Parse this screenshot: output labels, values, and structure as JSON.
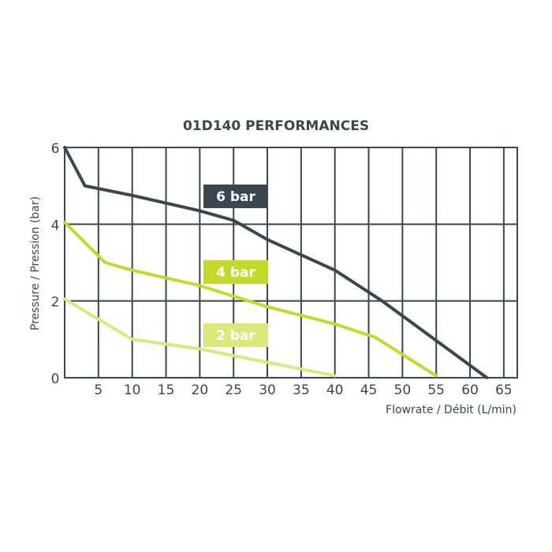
{
  "chart_data": {
    "type": "line",
    "title": "01D140 PERFORMANCES",
    "xlabel": "Flowrate / Débit (L/min)",
    "ylabel": "Pressure / Pression (bar)",
    "xlim": [
      0,
      67
    ],
    "ylim": [
      0,
      6
    ],
    "x_ticks": [
      5,
      10,
      15,
      20,
      25,
      30,
      35,
      40,
      45,
      50,
      55,
      60,
      65
    ],
    "y_ticks": [
      0,
      2,
      4,
      6
    ],
    "x_tick_labels": [
      "5",
      "10",
      "15",
      "20",
      "25",
      "30",
      "35",
      "40",
      "45",
      "50",
      "55",
      "60",
      "65"
    ],
    "y_tick_labels": [
      "0",
      "2",
      "4",
      "6"
    ],
    "grid": true,
    "series": [
      {
        "name": "6 bar",
        "color": "#3a4650",
        "points": [
          [
            0,
            6.0
          ],
          [
            3,
            5.0
          ],
          [
            10,
            4.75
          ],
          [
            20,
            4.35
          ],
          [
            25,
            4.1
          ],
          [
            26,
            4.0
          ],
          [
            30,
            3.6
          ],
          [
            40,
            2.8
          ],
          [
            47,
            2.0
          ],
          [
            62.5,
            0.0
          ]
        ]
      },
      {
        "name": "4 bar",
        "color": "#c5d92a",
        "points": [
          [
            0,
            4.05
          ],
          [
            6,
            3.0
          ],
          [
            10,
            2.8
          ],
          [
            20,
            2.4
          ],
          [
            30,
            1.85
          ],
          [
            40,
            1.4
          ],
          [
            46,
            1.05
          ],
          [
            55,
            0.05
          ]
        ]
      },
      {
        "name": "2 bar",
        "color": "#dde87a",
        "points": [
          [
            0,
            2.05
          ],
          [
            10,
            1.0
          ],
          [
            20,
            0.75
          ],
          [
            30,
            0.4
          ],
          [
            40,
            0.05
          ]
        ]
      }
    ],
    "legend": [
      {
        "label": "6 bar",
        "bg": "#3a4650"
      },
      {
        "label": "4 bar",
        "bg": "#c5d92a"
      },
      {
        "label": "2 bar",
        "bg": "#dde87a"
      }
    ]
  }
}
